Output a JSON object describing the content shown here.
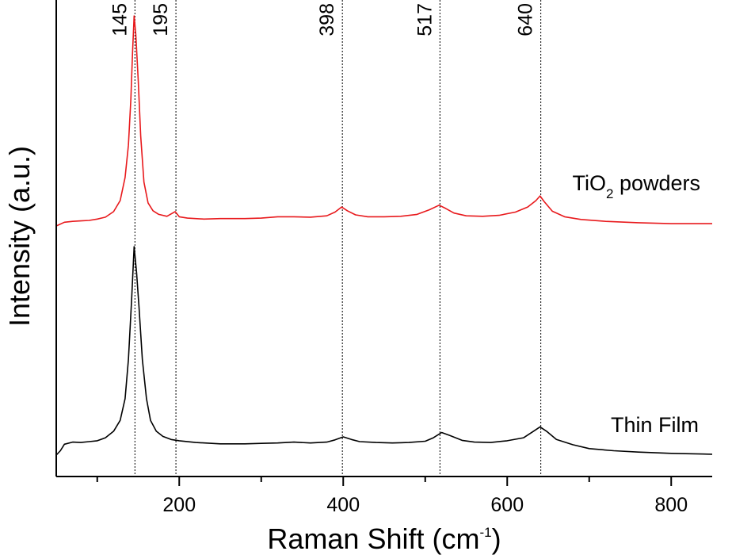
{
  "chart_data": {
    "type": "line",
    "title": "",
    "xlabel": {
      "main": "Raman Shift (cm",
      "sup": "-1",
      "close": ")"
    },
    "ylabel": "Intensity (a.u.)",
    "xlim": [
      50,
      850
    ],
    "ylim": [
      0,
      100
    ],
    "xticks": [
      200,
      400,
      600,
      800
    ],
    "xticks_minor": [
      100,
      300,
      500,
      700
    ],
    "y_tick_labels": false,
    "grid": false,
    "legend": "none",
    "peaks": [
      {
        "x": 145,
        "label": "145"
      },
      {
        "x": 195,
        "label": "195"
      },
      {
        "x": 398,
        "label": "398"
      },
      {
        "x": 517,
        "label": "517"
      },
      {
        "x": 640,
        "label": "640"
      }
    ],
    "series": [
      {
        "name": "TiO2 powders",
        "label_parts": {
          "main": "TiO",
          "sub": "2",
          "rest": " powders"
        },
        "color": "#e8191c",
        "x": [
          50,
          60,
          70,
          80,
          90,
          100,
          110,
          120,
          128,
          134,
          138,
          141,
          143,
          145,
          147,
          150,
          153,
          157,
          162,
          168,
          175,
          185,
          195,
          200,
          210,
          230,
          250,
          280,
          300,
          320,
          340,
          360,
          380,
          390,
          398,
          405,
          415,
          430,
          450,
          470,
          490,
          505,
          517,
          525,
          535,
          550,
          570,
          590,
          610,
          625,
          635,
          640,
          645,
          655,
          670,
          690,
          720,
          760,
          800,
          850
        ],
        "y": [
          54.5,
          55.3,
          55.5,
          55.6,
          55.7,
          56,
          56.4,
          57.6,
          60,
          65,
          72,
          82,
          92,
          100,
          96,
          86,
          74,
          64,
          59.5,
          57.8,
          57,
          56.6,
          57.6,
          56.5,
          56.2,
          56,
          56.1,
          56.1,
          56.2,
          56.5,
          56.5,
          56.4,
          56.7,
          57.5,
          58.6,
          57.8,
          56.9,
          56.5,
          56.5,
          56.6,
          57,
          58,
          59,
          58.3,
          57.3,
          56.7,
          56.6,
          56.8,
          57.5,
          58.6,
          60,
          61,
          59.8,
          57.7,
          56.5,
          55.9,
          55.5,
          55.2,
          55,
          55
        ]
      },
      {
        "name": "Thin Film",
        "label_parts": {
          "main": "Thin Film",
          "sub": "",
          "rest": ""
        },
        "color": "#000000",
        "x": [
          50,
          55,
          60,
          70,
          80,
          90,
          100,
          110,
          120,
          128,
          134,
          138,
          142,
          145,
          148,
          151,
          155,
          160,
          165,
          172,
          180,
          190,
          200,
          220,
          250,
          280,
          300,
          320,
          340,
          360,
          380,
          390,
          400,
          410,
          420,
          440,
          460,
          480,
          500,
          510,
          520,
          530,
          545,
          560,
          580,
          600,
          620,
          632,
          640,
          648,
          660,
          680,
          700,
          730,
          760,
          800,
          850
        ],
        "y": [
          4,
          5,
          6.5,
          7,
          6.9,
          7.1,
          7.3,
          8,
          9.5,
          12,
          17,
          26,
          40,
          52,
          46,
          38,
          26,
          17,
          12,
          9.5,
          8.3,
          7.6,
          7.3,
          6.9,
          6.6,
          6.6,
          6.7,
          6.8,
          7,
          6.8,
          7,
          7.5,
          8.2,
          7.6,
          7.1,
          6.9,
          6.8,
          6.9,
          7.2,
          8,
          9.2,
          8.5,
          7.4,
          7,
          6.9,
          7.3,
          8,
          9.5,
          10.5,
          9.5,
          7.6,
          6.4,
          5.5,
          5,
          4.7,
          4.4,
          4.2
        ]
      }
    ]
  }
}
